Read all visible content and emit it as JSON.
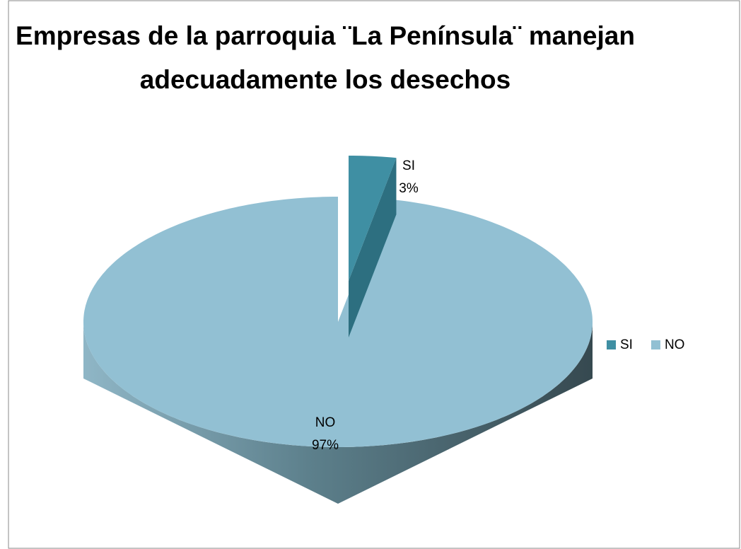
{
  "chart_data": {
    "type": "pie",
    "title": "Empresas de la parroquia ¨La Península¨ manejan adecuadamente los desechos",
    "categories": [
      "SI",
      "NO"
    ],
    "values": [
      3,
      97
    ],
    "value_labels": [
      "3%",
      "97%"
    ],
    "colors": [
      "#3f8fa3",
      "#92c0d3"
    ],
    "legend": "right",
    "exploded": [
      true,
      false
    ]
  }
}
